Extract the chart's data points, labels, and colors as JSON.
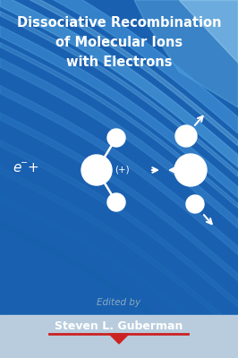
{
  "title_line1": "Dissociative Recombination",
  "title_line2": "of Molecular Ions",
  "title_line3": "with Electrons",
  "edited_by": "Edited by",
  "author": "Steven L. Guberman",
  "bg_blue": "#1a60b0",
  "bg_blue_dark": "#1550a0",
  "bg_blue_mid": "#2272cc",
  "stripe_light": "#4a9ee0",
  "stripe_lighter": "#80c0f0",
  "bottom_bar_color": "#b8ccdd",
  "title_color": "#ffffff",
  "author_color": "#ffffff",
  "atom_color": "#ffffff",
  "figsize": [
    2.66,
    4.0
  ],
  "dpi": 100
}
